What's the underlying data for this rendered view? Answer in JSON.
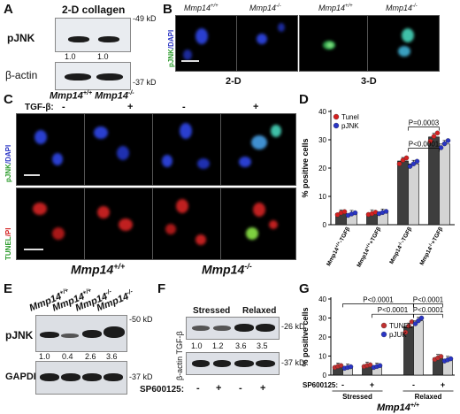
{
  "panelA": {
    "label": "A",
    "title": "2-D collagen",
    "rows": [
      "pJNK",
      "β-actin"
    ],
    "kd_top": "-49 kD",
    "kd_bottom": "-37 kD",
    "values": [
      "1.0",
      "1.0"
    ],
    "genotypes": [
      "Mmp14",
      "+/+",
      "Mmp14",
      "-/-"
    ]
  },
  "panelB": {
    "label": "B",
    "genotypes": [
      "Mmp14",
      "+/+",
      "Mmp14",
      "-/-",
      "Mmp14",
      "+/+",
      "Mmp14",
      "-/-"
    ],
    "ylabel_green": "pJNK",
    "ylabel_blue": "/DAPI",
    "conditions": [
      "2-D",
      "3-D"
    ]
  },
  "panelC": {
    "label": "C",
    "tgf_label": "TGF-β:",
    "signs": [
      "-",
      "+",
      "-",
      "+"
    ],
    "row1_green": "pJNK",
    "row1_blue": "/DAPI",
    "row2_green": "TUNEL",
    "row2_red": "/PI",
    "genotypes": [
      "Mmp14",
      "+/+",
      "Mmp14",
      "-/-"
    ]
  },
  "panelE": {
    "label": "E",
    "lanes": [
      "Mmp14",
      "+/+",
      "Mmp14",
      "+/+",
      "Mmp14",
      "-/-",
      "Mmp14",
      "-/-"
    ],
    "rows": [
      "pJNK",
      "GAPDH"
    ],
    "kd_top": "-50 kD",
    "kd_bottom": "-37 kD",
    "values": [
      "1.0",
      "0.4",
      "2.6",
      "3.6"
    ]
  },
  "panelF": {
    "label": "F",
    "groups": [
      "Stressed",
      "Relaxed"
    ],
    "rows": [
      "TGF-β",
      "β-actin"
    ],
    "kd_top": "-26 kD",
    "kd_bottom": "-37 kD",
    "values": [
      "1.0",
      "1.2",
      "3.6",
      "3.5"
    ],
    "inhibitor": "SP600125:",
    "signs": [
      "-",
      "+",
      "-",
      "+"
    ]
  },
  "chart_data": [
    {
      "panel": "D",
      "type": "bar",
      "ylabel": "% positive cells",
      "ylim": [
        0,
        40
      ],
      "yticks": [
        0,
        10,
        20,
        30,
        40
      ],
      "categories": [
        "Mmp14+/+-TGFβ",
        "Mmp14+/++TGFβ",
        "Mmp14-/--TGFβ",
        "Mmp14-/-+TGFβ"
      ],
      "category_parts": [
        [
          "Mmp14",
          "+/+",
          "-TGFβ"
        ],
        [
          "Mmp14",
          "+/+",
          "+TGFβ"
        ],
        [
          "Mmp14",
          "-/-",
          "-TGFβ"
        ],
        [
          "Mmp14",
          "-/-",
          "+TGFβ"
        ]
      ],
      "series": [
        {
          "name": "Tunel",
          "values": [
            4,
            4,
            22.5,
            31
          ],
          "dot_color": "#d42020",
          "bar_color": "#3e3e3e",
          "points": [
            [
              3.5,
              4.2,
              4.6
            ],
            [
              3.6,
              3.9,
              4.4
            ],
            [
              21.5,
              22.8,
              23.6
            ],
            [
              29.5,
              31.2,
              32.4
            ]
          ]
        },
        {
          "name": "pJNK",
          "values": [
            3.8,
            4.3,
            21.5,
            28.5
          ],
          "dot_color": "#2a35c4",
          "bar_color": "#d4d4d4",
          "points": [
            [
              3.3,
              3.8,
              4.2
            ],
            [
              3.9,
              4.3,
              4.7
            ],
            [
              20.6,
              21.5,
              22.4
            ],
            [
              27.2,
              28.6,
              29.7
            ]
          ]
        }
      ],
      "comparisons": [
        {
          "label": "P<0.0001",
          "from": 2,
          "to": 3,
          "y": 27
        },
        {
          "label": "P=0.0003",
          "from": 2,
          "to": 3,
          "y": 34.5
        }
      ]
    },
    {
      "panel": "G",
      "type": "bar",
      "ylabel": "% positive cells",
      "ylim": [
        0,
        40
      ],
      "yticks": [
        0,
        10,
        20,
        30,
        40
      ],
      "categories": [
        "-",
        "+",
        "-",
        "+"
      ],
      "groups": [
        "Stressed",
        "Relaxed"
      ],
      "inhibitor": "SP600125:",
      "genotype": [
        "Mmp14",
        "+/+"
      ],
      "series": [
        {
          "name": "TUNEL",
          "values": [
            4.5,
            5,
            25.5,
            9
          ],
          "dot_color": "#c03030",
          "bar_color": "#3e3e3e",
          "points": [
            [
              4.0,
              4.6,
              5.0
            ],
            [
              4.5,
              5.0,
              5.4
            ],
            [
              22.5,
              25.8,
              28.0
            ],
            [
              8.2,
              9.0,
              9.8
            ]
          ]
        },
        {
          "name": "pJUK",
          "values": [
            4,
            4.5,
            28.5,
            8
          ],
          "dot_color": "#2a35c4",
          "bar_color": "#d4d4d4",
          "points": [
            [
              3.6,
              4.0,
              4.4
            ],
            [
              4.0,
              4.5,
              5.0
            ],
            [
              27.0,
              28.6,
              30.0
            ],
            [
              7.4,
              8.0,
              8.6
            ]
          ]
        }
      ],
      "comparisons": [
        {
          "label": "P<0.0001",
          "from": 0,
          "to": 2,
          "y": 37.5
        },
        {
          "label": "P<0.0001",
          "from": 2,
          "to": 3,
          "y": 37.5
        },
        {
          "label": "P<0.0001",
          "from": 1,
          "to": 2,
          "y": 32
        },
        {
          "label": "P<0.0001",
          "from": 2,
          "to": 3,
          "y": 32
        }
      ]
    }
  ]
}
